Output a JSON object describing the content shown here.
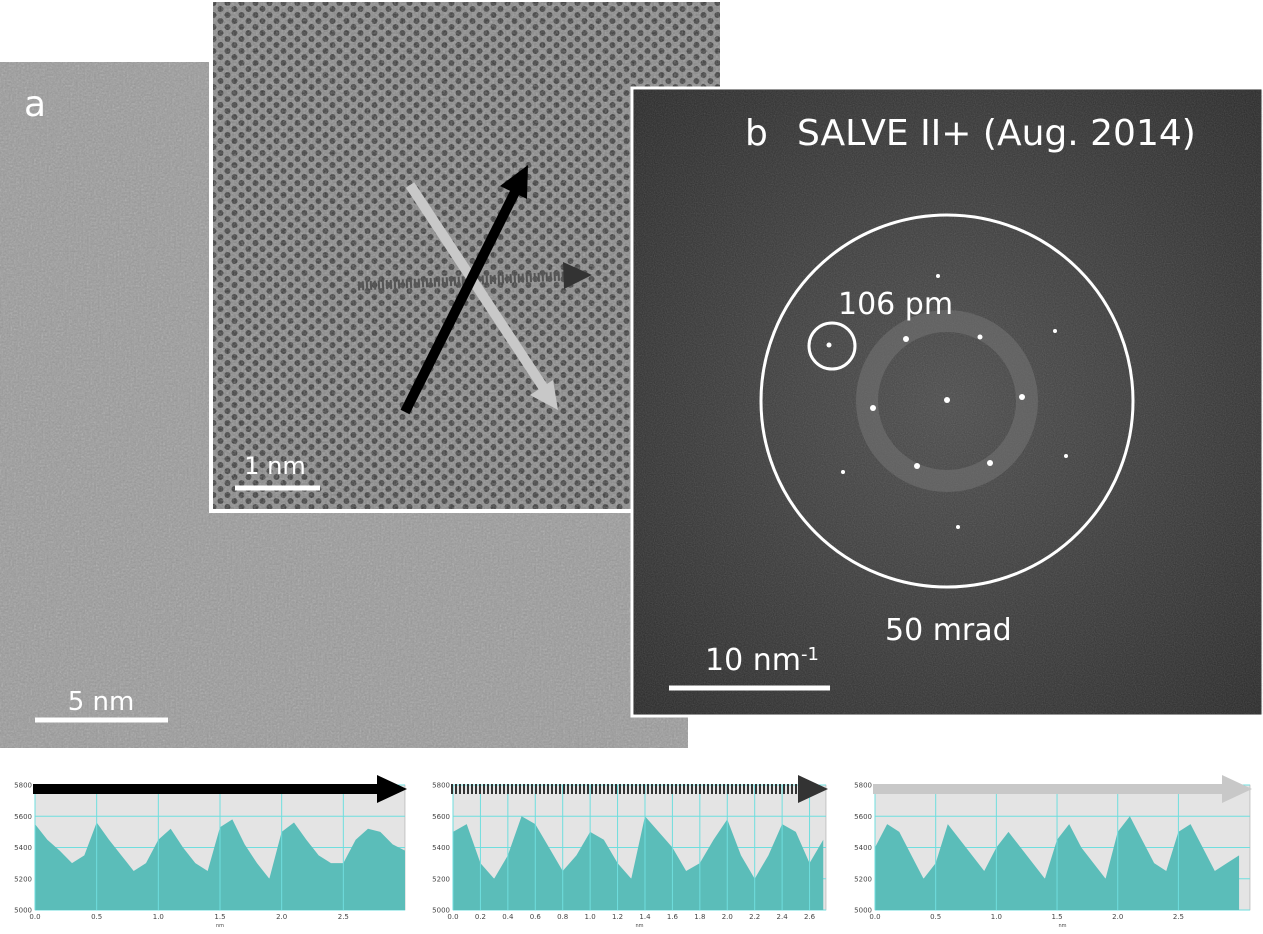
{
  "panel_a": {
    "label": "a",
    "scale_bar": "5 nm",
    "inset_scale_bar": "1 nm"
  },
  "panel_b": {
    "label": "b",
    "title": "SALVE II+ (Aug. 2014)",
    "spot_label": "106 pm",
    "aperture_label": "50 mrad",
    "scale_bar": "10 nm",
    "scale_bar_exponent": "-1"
  },
  "chart_data": [
    {
      "type": "area",
      "arrow_color": "#000000",
      "arrow_style": "solid",
      "x_label": "nm",
      "x": [
        0,
        0.1,
        0.2,
        0.3,
        0.4,
        0.5,
        0.6,
        0.7,
        0.8,
        0.9,
        1,
        1.1,
        1.2,
        1.3,
        1.4,
        1.5,
        1.6,
        1.7,
        1.8,
        1.9,
        2,
        2.1,
        2.2,
        2.3,
        2.4,
        2.5,
        2.6,
        2.7,
        2.8,
        2.9,
        3
      ],
      "series": [
        {
          "color": "#5bbdb9",
          "values": [
            5550,
            5450,
            5380,
            5300,
            5350,
            5560,
            5450,
            5350,
            5250,
            5300,
            5450,
            5520,
            5400,
            5300,
            5250,
            5530,
            5580,
            5420,
            5300,
            5200,
            5500,
            5560,
            5450,
            5350,
            5300,
            5300,
            5450,
            5520,
            5500,
            5420,
            5380
          ]
        }
      ],
      "xlim": [
        0,
        3.0
      ],
      "ylim": [
        5000,
        5800
      ],
      "xticks": [
        {
          "value": 0,
          "label": "0.0"
        },
        0.5,
        {
          "value": 1,
          "label": "1.0"
        },
        1.5,
        {
          "value": 2,
          "label": "2.0"
        },
        2.5
      ],
      "yticks": [
        5000,
        5200,
        5400,
        5600,
        5800
      ],
      "grid": true
    },
    {
      "type": "area",
      "arrow_color": "#333333",
      "arrow_style": "dotted",
      "x_label": "nm",
      "x": [
        0,
        0.1,
        0.2,
        0.3,
        0.4,
        0.5,
        0.6,
        0.7,
        0.8,
        0.9,
        1,
        1.1,
        1.2,
        1.3,
        1.4,
        1.5,
        1.6,
        1.7,
        1.8,
        1.9,
        2,
        2.1,
        2.2,
        2.3,
        2.4,
        2.5,
        2.6,
        2.7
      ],
      "series": [
        {
          "color": "#5bbdb9",
          "values": [
            5500,
            5550,
            5300,
            5200,
            5350,
            5600,
            5550,
            5400,
            5250,
            5350,
            5500,
            5450,
            5300,
            5200,
            5600,
            5500,
            5400,
            5250,
            5300,
            5450,
            5580,
            5350,
            5200,
            5350,
            5550,
            5500,
            5300,
            5450
          ]
        }
      ],
      "xlim": [
        0,
        2.72
      ],
      "ylim": [
        5000,
        5800
      ],
      "xticks": [
        {
          "value": 0,
          "label": "0.0"
        },
        0.2,
        0.4,
        0.6,
        0.8,
        {
          "value": 1,
          "label": "1.0"
        },
        1.2,
        1.4,
        1.6,
        1.8,
        {
          "value": 2,
          "label": "2.0"
        },
        2.2,
        2.4,
        2.6
      ],
      "yticks": [
        5000,
        5200,
        5400,
        5600,
        5800
      ],
      "grid": true
    },
    {
      "type": "area",
      "arrow_color": "#c8c8c8",
      "arrow_style": "solid",
      "x_label": "nm",
      "x": [
        0,
        0.1,
        0.2,
        0.3,
        0.4,
        0.5,
        0.6,
        0.7,
        0.8,
        0.9,
        1,
        1.1,
        1.2,
        1.3,
        1.4,
        1.5,
        1.6,
        1.7,
        1.8,
        1.9,
        2,
        2.1,
        2.2,
        2.3,
        2.4,
        2.5,
        2.6,
        2.7,
        2.8,
        2.9,
        3
      ],
      "series": [
        {
          "color": "#5bbdb9",
          "values": [
            5400,
            5550,
            5500,
            5350,
            5200,
            5300,
            5550,
            5450,
            5350,
            5250,
            5400,
            5500,
            5400,
            5300,
            5200,
            5450,
            5550,
            5400,
            5300,
            5200,
            5500,
            5600,
            5450,
            5300,
            5250,
            5500,
            5550,
            5400,
            5250,
            5300,
            5350
          ]
        }
      ],
      "xlim": [
        0,
        3.09
      ],
      "ylim": [
        5000,
        5800
      ],
      "xticks": [
        {
          "value": 0,
          "label": "0.0"
        },
        0.5,
        {
          "value": 1,
          "label": "1.0"
        },
        1.5,
        {
          "value": 2,
          "label": "2.0"
        },
        2.5
      ],
      "yticks": [
        5000,
        5200,
        5400,
        5600,
        5800
      ],
      "grid": true
    }
  ]
}
